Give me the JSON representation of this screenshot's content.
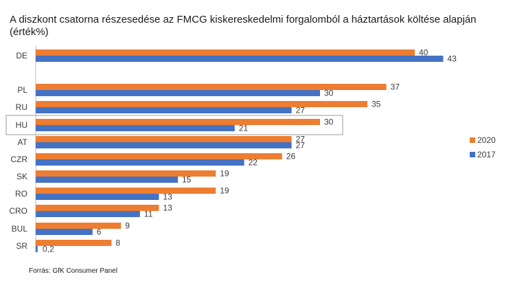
{
  "chart_data": {
    "type": "bar",
    "orientation": "horizontal",
    "title": "A diszkont csatorna részesedése az FMCG kiskereskedelmi forgalomból a háztartások költése alapján (érték%)",
    "categories": [
      "DE",
      "PL",
      "RU",
      "HU",
      "AT",
      "CZR",
      "SK",
      "RO",
      "CRO",
      "BUL",
      "SR"
    ],
    "series": [
      {
        "name": "2020",
        "color": "#ED7D31",
        "values": [
          40,
          37,
          35,
          30,
          27,
          26,
          19,
          19,
          13,
          9,
          8
        ],
        "labels": [
          "40",
          "37",
          "35",
          "30",
          "27",
          "26",
          "19",
          "19",
          "13",
          "9",
          "8"
        ]
      },
      {
        "name": "2017",
        "color": "#4472C4",
        "values": [
          43,
          30,
          27,
          21,
          27,
          22,
          15,
          13,
          11,
          6,
          0.2
        ],
        "labels": [
          "43",
          "30",
          "27",
          "21",
          "27",
          "22",
          "15",
          "13",
          "11",
          "6",
          "0,2"
        ]
      }
    ],
    "highlighted_category": "HU",
    "legend_position": "right",
    "grid": false,
    "xlim": [
      0,
      47
    ]
  },
  "source": "Forrás: GfK Consumer Panel"
}
